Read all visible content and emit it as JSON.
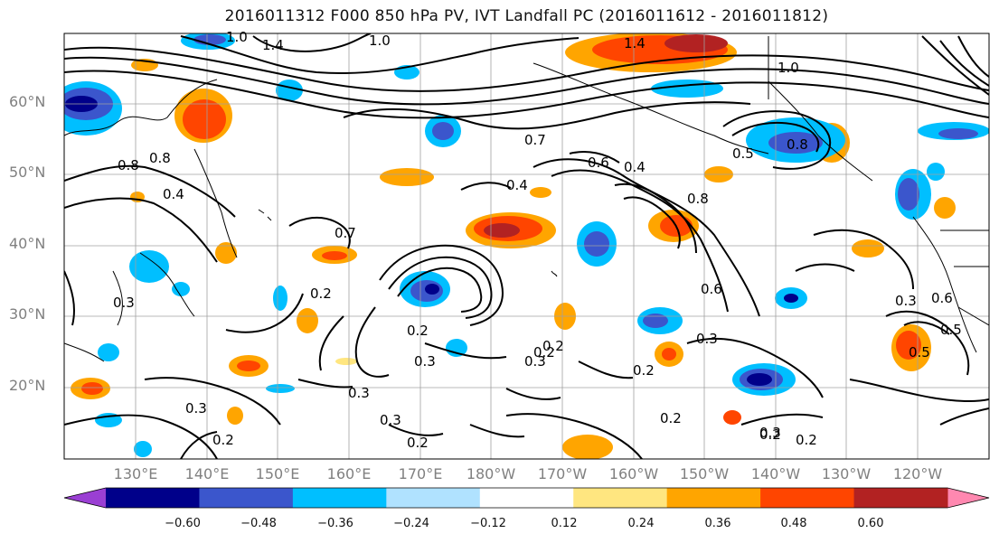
{
  "title": "2016011312 F000 850 hPa PV, IVT Landfall PC (2016011612 - 2016011812)",
  "lat_labels": [
    "60°N",
    "50°N",
    "40°N",
    "30°N",
    "20°N"
  ],
  "lon_labels": [
    "130°E",
    "140°E",
    "150°E",
    "160°E",
    "170°E",
    "180°W",
    "170°W",
    "160°W",
    "150°W",
    "140°W",
    "130°W",
    "120°W"
  ],
  "contour_labels": [
    "1.0",
    "1.4",
    "1.0",
    "1.0",
    "1.4",
    "0.8",
    "0.7",
    "0.8",
    "0.4",
    "0.4",
    "0.7",
    "0.6",
    "0.4",
    "0.8",
    "0.5",
    "0.8",
    "0.6",
    "0.3",
    "0.2",
    "0.2",
    "0.3",
    "0.2",
    "0.3",
    "0.3",
    "0.2",
    "0.3",
    "0.2",
    "0.3",
    "0.2",
    "0.2",
    "0.3",
    "0.3",
    "0.2",
    "0.6",
    "0.5",
    "0.5",
    "0.3",
    "0.2",
    "0.2"
  ],
  "colorbar": {
    "ticks": [
      "−0.60",
      "−0.48",
      "−0.36",
      "−0.24",
      "−0.12",
      "0.12",
      "0.24",
      "0.36",
      "0.48",
      "0.60"
    ],
    "colors": [
      "#9a3fd3",
      "#00008a",
      "#3b56cc",
      "#00bfff",
      "#b0e2ff",
      "#ffffff",
      "#ffe680",
      "#ffa500",
      "#ff4500",
      "#b22222",
      "#ff88b0"
    ]
  },
  "shading_colors": {
    "neg_strong": "#00008a",
    "neg_mid": "#3b56cc",
    "neg_light": "#00bfff",
    "neg_faint": "#b0e2ff",
    "pos_faint": "#ffe680",
    "pos_light": "#ffa500",
    "pos_mid": "#ff4500",
    "pos_strong": "#b22222"
  }
}
